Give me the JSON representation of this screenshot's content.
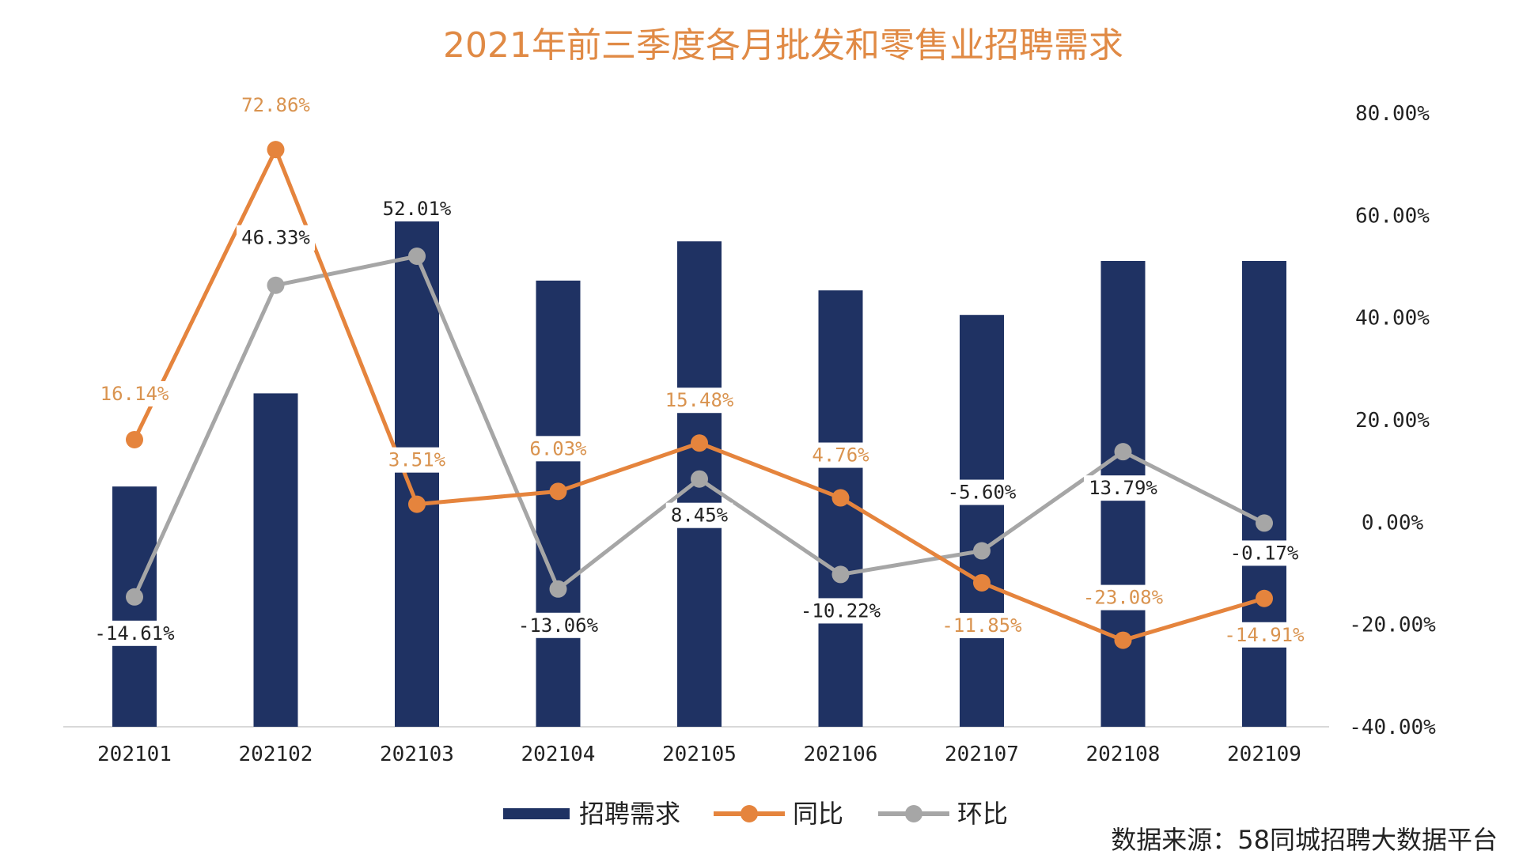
{
  "chart_data": {
    "type": "bar",
    "title": "2021年前三季度各月批发和零售业招聘需求",
    "categories": [
      "202101",
      "202102",
      "202103",
      "202104",
      "202105",
      "202106",
      "202107",
      "202108",
      "202109"
    ],
    "series": [
      {
        "name": "招聘需求",
        "type": "bar",
        "axis": "left",
        "values": [
          49,
          68,
          105,
          91,
          99,
          89,
          84,
          95,
          95
        ]
      },
      {
        "name": "同比",
        "type": "line",
        "axis": "right",
        "values": [
          16.14,
          72.86,
          3.51,
          6.03,
          15.48,
          4.76,
          -11.85,
          -23.08,
          -14.91
        ],
        "labels": [
          "16.14%",
          "72.86%",
          "3.51%",
          "6.03%",
          "15.48%",
          "4.76%",
          "-11.85%",
          "-23.08%",
          "-14.91%"
        ]
      },
      {
        "name": "环比",
        "type": "line",
        "axis": "right",
        "values": [
          -14.61,
          46.33,
          52.01,
          -13.06,
          8.45,
          -10.22,
          -5.6,
          13.79,
          -0.17
        ],
        "labels": [
          "-14.61%",
          "46.33%",
          "52.01%",
          "-13.06%",
          "8.45%",
          "-10.22%",
          "-5.60%",
          "13.79%",
          "-0.17%"
        ]
      }
    ],
    "y2_ticks": [
      "80.00%",
      "60.00%",
      "40.00%",
      "20.00%",
      "0.00%",
      "-20.00%",
      "-40.00%"
    ],
    "y2lim": [
      -40,
      80
    ],
    "legend_position": "bottom-center",
    "grid": false,
    "colors": {
      "bar": "#1f3263",
      "yoy": "#e5843d",
      "mom": "#a6a6a6",
      "title": "#e08a45"
    }
  },
  "source": "数据来源：58同城招聘大数据平台"
}
